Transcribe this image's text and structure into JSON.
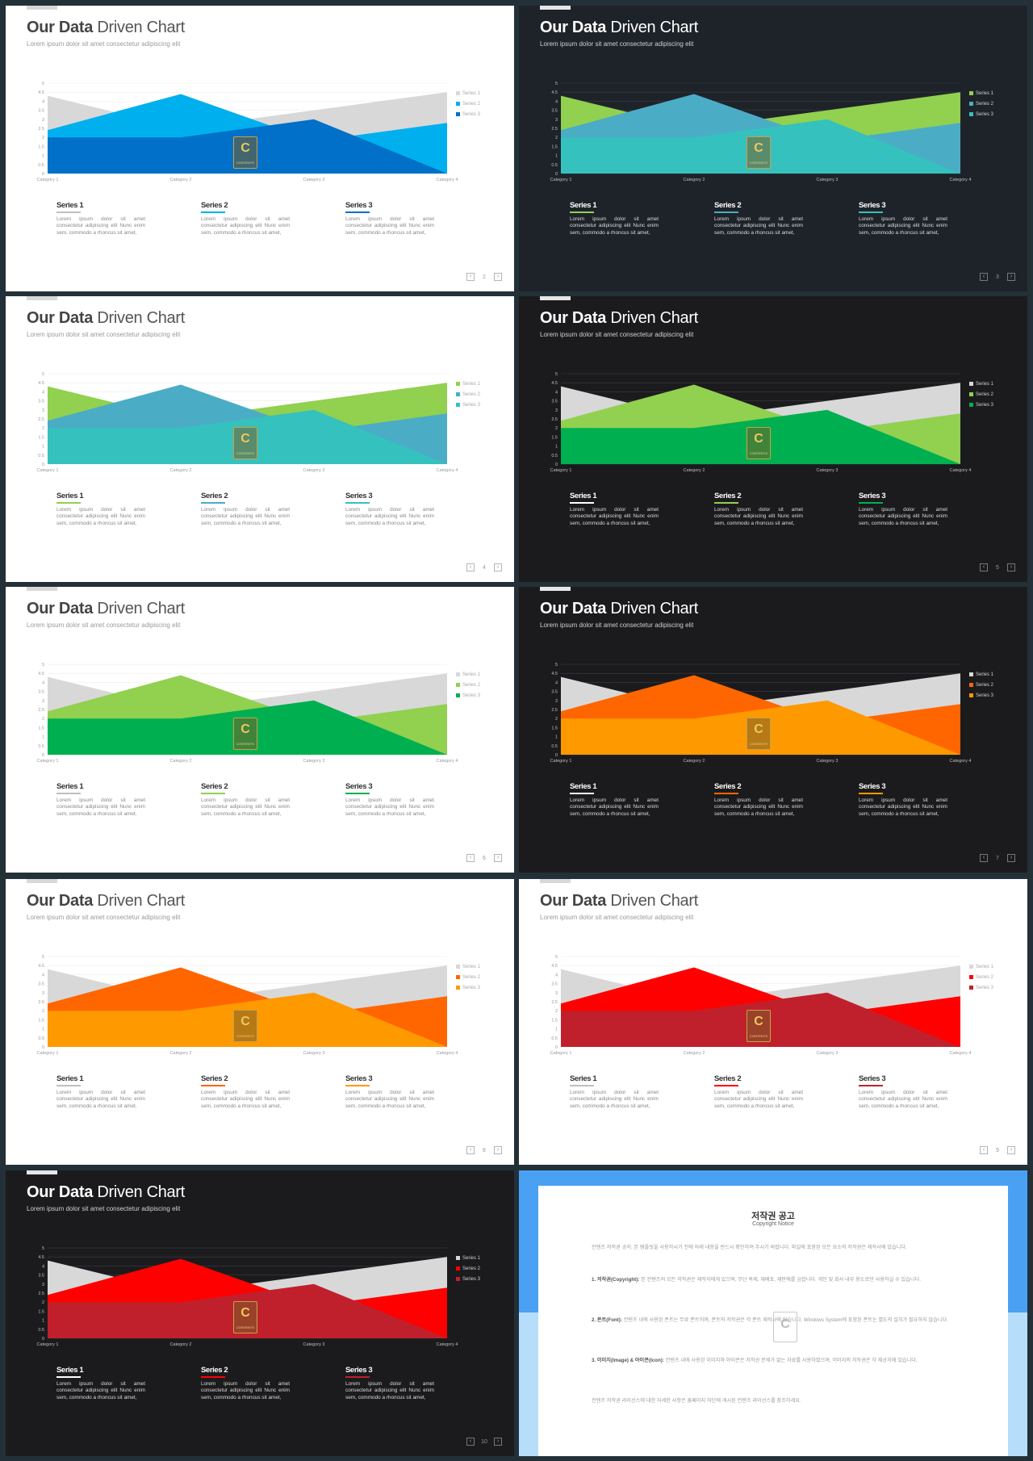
{
  "slides": [
    {
      "theme": "light",
      "bg": "#ffffff",
      "page": "2",
      "colors": [
        "#d8d8d8",
        "#00b0ee",
        "#0070c8"
      ]
    },
    {
      "theme": "dark",
      "bg": "#1e2329",
      "page": "3",
      "colors": [
        "#92d050",
        "#4bacc6",
        "#35c1bd"
      ]
    },
    {
      "theme": "light",
      "bg": "#ffffff",
      "page": "4",
      "colors": [
        "#92d050",
        "#4bacc6",
        "#35c1bd"
      ]
    },
    {
      "theme": "dark",
      "bg": "#1b1b1d",
      "page": "5",
      "colors": [
        "#d8d8d8",
        "#92d050",
        "#00b050"
      ]
    },
    {
      "theme": "light",
      "bg": "#ffffff",
      "page": "6",
      "colors": [
        "#d8d8d8",
        "#92d050",
        "#00b050"
      ]
    },
    {
      "theme": "dark",
      "bg": "#1b1b1d",
      "page": "7",
      "colors": [
        "#d8d8d8",
        "#ff6600",
        "#ff9900"
      ]
    },
    {
      "theme": "light",
      "bg": "#ffffff",
      "page": "8",
      "colors": [
        "#d8d8d8",
        "#ff6600",
        "#ff9900"
      ]
    },
    {
      "theme": "light",
      "bg": "#ffffff",
      "page": "9",
      "colors": [
        "#d8d8d8",
        "#ff0000",
        "#c0202c"
      ]
    },
    {
      "theme": "dark",
      "bg": "#1b1b1d",
      "page": "10",
      "colors": [
        "#d8d8d8",
        "#ff0000",
        "#c0202c"
      ]
    }
  ],
  "shared": {
    "title_bold": "Our Data",
    "title_rest": "Driven Chart",
    "subtitle": "Lorem ipsum dolor sit amet consectetur adipiscing elit",
    "desc_text": "Lorem ipsum dolor sit amet consectetur adipiscing elit Nunc enim sem, commodo a rhoncus sit amet,",
    "watermark_letter": "C",
    "watermark_sub": "CONTENTS"
  },
  "chart_data": {
    "type": "area",
    "categories": [
      "Category 1",
      "Category 2",
      "Category 3",
      "Category 4"
    ],
    "series": [
      {
        "name": "Series 1",
        "values": [
          4.3,
          2.5,
          3.5,
          4.5
        ]
      },
      {
        "name": "Series 2",
        "values": [
          2.4,
          4.4,
          1.8,
          2.8
        ]
      },
      {
        "name": "Series 3",
        "values": [
          2.0,
          2.0,
          3.0,
          0.0
        ]
      }
    ],
    "ylim": [
      0,
      5
    ],
    "yticks": [
      "0",
      "0.5",
      "1",
      "1.5",
      "2",
      "2.5",
      "3",
      "3.5",
      "4",
      "4.5",
      "5"
    ],
    "legend": "right"
  },
  "copyright": {
    "title": "저작권 공고",
    "subtitle": "Copyright Notice",
    "intro": "컨텐츠 저작권 공지: 본 템플릿을 사용하시기 전에 아래 내용을 반드시 확인하여 주시기 바랍니다. 파일에 포함된 모든 요소의 저작권은 제작사에 있습니다.",
    "p1_label": "1. 저작권(Copyright):",
    "p1": "본 컨텐츠의 모든 저작권은 제작자에게 있으며, 무단 복제, 재배포, 재판매를 금합니다. 개인 및 회사 내부 용도로만 사용하실 수 있습니다.",
    "p2_label": "2. 폰트(Font):",
    "p2": "컨텐츠 내에 사용된 폰트는 무료 폰트이며, 폰트의 저작권은 각 폰트 제작사에 있습니다. Windows System에 포함된 폰트는 별도의 설치가 필요하지 않습니다.",
    "p3_label": "3. 이미지(Image) & 아이콘(Icon):",
    "p3": "컨텐츠 내에 사용된 이미지와 아이콘은 저작권 문제가 없는 자료를 사용하였으며, 이미지의 저작권은 각 제공처에 있습니다.",
    "footer": "컨텐츠 저작권 라이선스에 대한 자세한 사항은 홈페이지 하단에 게시된 컨텐츠 라이선스를 참조하세요."
  }
}
